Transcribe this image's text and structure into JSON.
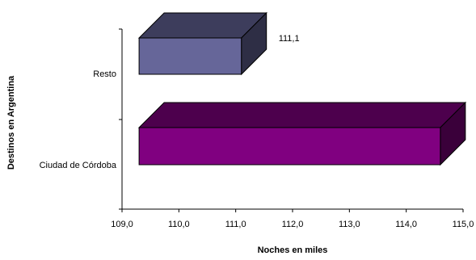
{
  "chart_data": {
    "type": "bar",
    "orientation": "horizontal",
    "style": "3d",
    "categories": [
      "Resto",
      "Ciudad de Córdoba"
    ],
    "values": [
      111.1,
      114.6
    ],
    "data_labels": [
      "111,1",
      ""
    ],
    "colors": [
      "#666699",
      "#800080"
    ],
    "xlabel": "Noches en miles",
    "ylabel": "Destinos en Argentina",
    "xlim": [
      109.0,
      115.0
    ],
    "x_ticks": [
      "109,0",
      "110,0",
      "111,0",
      "112,0",
      "113,0",
      "114,0",
      "115,0"
    ],
    "grid": false,
    "legend": "none"
  }
}
